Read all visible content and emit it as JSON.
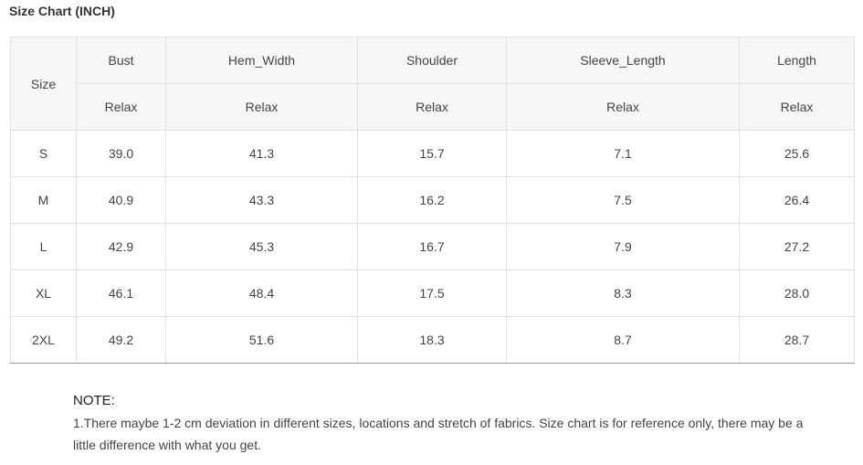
{
  "title": "Size Chart (INCH)",
  "table": {
    "size_header": "Size",
    "columns": [
      "Bust",
      "Hem_Width",
      "Shoulder",
      "Sleeve_Length",
      "Length"
    ],
    "sub_header": [
      "Relax",
      "Relax",
      "Relax",
      "Relax",
      "Relax"
    ],
    "rows": [
      {
        "size": "S",
        "values": [
          "39.0",
          "41.3",
          "15.7",
          "7.1",
          "25.6"
        ]
      },
      {
        "size": "M",
        "values": [
          "40.9",
          "43.3",
          "16.2",
          "7.5",
          "26.4"
        ]
      },
      {
        "size": "L",
        "values": [
          "42.9",
          "45.3",
          "16.7",
          "7.9",
          "27.2"
        ]
      },
      {
        "size": "XL",
        "values": [
          "46.1",
          "48.4",
          "17.5",
          "8.3",
          "28.0"
        ]
      },
      {
        "size": "2XL",
        "values": [
          "49.2",
          "51.6",
          "18.3",
          "8.7",
          "28.7"
        ]
      }
    ]
  },
  "note": {
    "title": "NOTE:",
    "text": "1.There maybe 1-2 cm deviation in different sizes, locations and stretch of fabrics. Size chart is for reference only, there may be a little difference with what you get."
  }
}
